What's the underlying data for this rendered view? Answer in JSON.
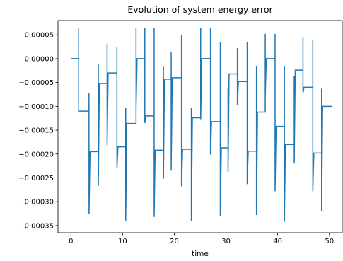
{
  "chart_data": {
    "type": "line",
    "title": "Evolution of system energy error",
    "xlabel": "time",
    "ylabel": "",
    "xlim": [
      -2.5,
      52.5
    ],
    "ylim": [
      -0.000365,
      8e-05
    ],
    "x_ticks": [
      0,
      10,
      20,
      30,
      40,
      50
    ],
    "x_tick_labels": [
      "0",
      "10",
      "20",
      "30",
      "40",
      "50"
    ],
    "y_ticks": [
      5e-05,
      0.0,
      -5e-05,
      -0.0001,
      -0.00015,
      -0.0002,
      -0.00025,
      -0.0003,
      -0.00035
    ],
    "y_tick_labels": [
      "0.00005",
      "0.00000",
      "−0.00005",
      "−0.00010",
      "−0.00015",
      "−0.00020",
      "−0.00025",
      "−0.00030",
      "−0.00035"
    ],
    "grid": false,
    "line_color": "#1f77b4",
    "series": [
      {
        "x": [
          0.0,
          1.5,
          1.5,
          1.5,
          1.7,
          1.7,
          3.5,
          3.5,
          3.5,
          3.7,
          3.7,
          5.3,
          5.3,
          5.3,
          5.5,
          5.5,
          7.0,
          7.0,
          7.0,
          7.2,
          7.2,
          8.9,
          8.9,
          8.9,
          9.1,
          9.1,
          10.6,
          10.6,
          10.6,
          10.8,
          10.8,
          12.6,
          12.6,
          12.6,
          12.8,
          12.8,
          14.3,
          14.3,
          14.3,
          14.5,
          14.5,
          16.1,
          16.1,
          16.1,
          16.3,
          16.3,
          17.9,
          17.9,
          17.9,
          18.1,
          18.1,
          19.4,
          19.4,
          19.4,
          19.6,
          19.6,
          21.4,
          21.4,
          21.4,
          21.6,
          21.6,
          23.3,
          23.3,
          23.3,
          23.5,
          23.5,
          25.1,
          25.1,
          25.1,
          25.3,
          25.3,
          27.0,
          27.0,
          27.0,
          27.2,
          27.2,
          28.9,
          28.9,
          28.9,
          29.1,
          29.1,
          30.4,
          30.4,
          30.4,
          30.6,
          30.6,
          32.2,
          32.2,
          32.2,
          32.4,
          32.4,
          34.1,
          34.1,
          34.1,
          34.3,
          34.3,
          35.9,
          35.9,
          35.9,
          36.1,
          36.1,
          37.6,
          37.6,
          37.6,
          37.8,
          37.8,
          39.5,
          39.5,
          39.5,
          39.7,
          39.7,
          41.3,
          41.3,
          41.3,
          41.5,
          41.5,
          43.2,
          43.2,
          43.2,
          43.4,
          43.4,
          44.9,
          44.9,
          44.9,
          45.1,
          45.1,
          46.8,
          46.8,
          46.8,
          47.0,
          47.0,
          48.5,
          48.5,
          48.5,
          48.7,
          48.7,
          50.5
        ],
        "y": [
          0.0,
          0.0,
          6.5e-05,
          -0.00011,
          -0.00011,
          -0.00011,
          -0.00011,
          -7.3e-05,
          -0.000325,
          -0.000195,
          -0.000195,
          -0.000195,
          -1.2e-05,
          -0.000267,
          -5.2e-05,
          -5.2e-05,
          -5.2e-05,
          3.1e-05,
          -0.000182,
          -3e-05,
          -3e-05,
          -3e-05,
          2.5e-05,
          -0.00023,
          -0.000185,
          -0.000185,
          -0.000185,
          -0.000104,
          -0.00034,
          -0.000136,
          -0.000136,
          -0.000136,
          6.5e-05,
          -0.000104,
          0.0,
          0.0,
          0.0,
          6.5e-05,
          -0.000135,
          -0.00012,
          -0.00012,
          -0.00012,
          6.5e-05,
          -0.000332,
          -0.000192,
          -0.000192,
          -0.000192,
          -1.7e-05,
          -0.000252,
          -4.3e-05,
          -4.3e-05,
          -4.3e-05,
          1.5e-05,
          -0.000235,
          -4e-05,
          -4e-05,
          -4e-05,
          5e-05,
          -0.000268,
          -0.00019,
          -0.00019,
          -0.00019,
          -0.000104,
          -0.00034,
          -0.000124,
          -0.000124,
          -0.000124,
          6.5e-05,
          -0.000127,
          0.0,
          0.0,
          0.0,
          6.5e-05,
          -0.000201,
          -0.000132,
          -0.000132,
          -0.000132,
          3.5e-05,
          -0.00033,
          -0.000187,
          -0.000187,
          -0.000187,
          -6.2e-05,
          -0.000237,
          -3.2e-05,
          -3.2e-05,
          -3.2e-05,
          2.2e-05,
          -9.8e-05,
          -4.8e-05,
          -4.8e-05,
          -4.8e-05,
          3.5e-05,
          -0.000263,
          -0.000194,
          -0.000194,
          -0.000194,
          -1.6e-05,
          -0.000328,
          -0.000112,
          -0.000112,
          -0.000112,
          5.2e-05,
          -7.8e-05,
          0.0,
          0.0,
          0.0,
          5.2e-05,
          -0.000278,
          -0.000142,
          -0.000142,
          -0.000142,
          -1.5e-05,
          -0.000342,
          -0.00018,
          -0.00018,
          -0.00018,
          -3.7e-05,
          -0.00022,
          -2.4e-05,
          -2.4e-05,
          -2.4e-05,
          4.5e-05,
          -7.2e-05,
          -6e-05,
          -6e-05,
          -6e-05,
          3.8e-05,
          -0.000278,
          -0.000198,
          -0.000198,
          -0.000198,
          -6.3e-05,
          -0.00032,
          -0.0001,
          -0.0001,
          -0.0001
        ]
      }
    ]
  }
}
